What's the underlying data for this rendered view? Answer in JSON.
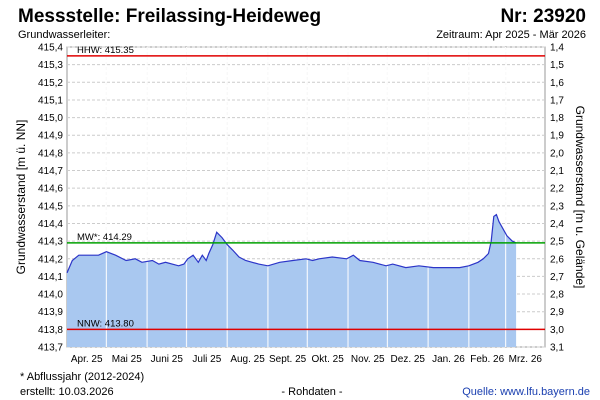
{
  "header": {
    "title": "Messstelle: Freilassing-Heideweg",
    "number": "Nr: 23920",
    "subtitle": "Grundwasserleiter:",
    "period": "Zeitraum: Apr 2025 - Mär 2026"
  },
  "footer": {
    "note": "* Abflussjahr (2012-2024)",
    "created": "erstellt:  10.03.2026",
    "rawdata": "- Rohdaten -",
    "source": "Quelle: www.lfu.bayern.de"
  },
  "colors": {
    "fill": "#a9c8f0",
    "line": "#2c35c8",
    "hhw": "#e00000",
    "mw": "#00a000",
    "nnw": "#e00000",
    "grid": "#cccccc",
    "month_grid": "#dddddd"
  },
  "chart_data": {
    "type": "area",
    "ylabel": "Grundwasserstand [m ü. NN]",
    "y2label": "Grundwasserstand [m u. Gelände]",
    "ylim": [
      413.7,
      415.4
    ],
    "y2lim": [
      3.1,
      1.4
    ],
    "yticks": [
      "413,7",
      "413,8",
      "413,9",
      "414,0",
      "414,1",
      "414,2",
      "414,3",
      "414,4",
      "414,5",
      "414,6",
      "414,7",
      "414,8",
      "414,9",
      "415,0",
      "415,1",
      "415,2",
      "415,3",
      "415,4"
    ],
    "y2ticks": [
      "3,1",
      "3,0",
      "2,9",
      "2,8",
      "2,7",
      "2,6",
      "2,5",
      "2,4",
      "2,3",
      "2,2",
      "2,1",
      "2,0",
      "1,9",
      "1,8",
      "1,7",
      "1,6",
      "1,5",
      "1,4"
    ],
    "month_ticks": [
      "Apr. 25",
      "Mai 25",
      "Juni 25",
      "Juli 25",
      "Aug. 25",
      "Sept. 25",
      "Okt. 25",
      "Nov. 25",
      "Dez. 25",
      "Jan. 26",
      "Feb. 26",
      "Mrz. 26"
    ],
    "reference_lines": [
      {
        "label": "HHW: 415.35",
        "value": 415.35,
        "color": "#e00000"
      },
      {
        "label": "MW*: 414.29",
        "value": 414.29,
        "color": "#00a000"
      },
      {
        "label": "NNW: 413.80",
        "value": 413.8,
        "color": "#e00000"
      }
    ],
    "series": [
      {
        "x": [
          "2025-04-01",
          "2025-04-05",
          "2025-04-10",
          "2025-04-20",
          "2025-04-25",
          "2025-05-01",
          "2025-05-08",
          "2025-05-16",
          "2025-05-23",
          "2025-05-28",
          "2025-06-05",
          "2025-06-10",
          "2025-06-15",
          "2025-06-25",
          "2025-06-29",
          "2025-07-02",
          "2025-07-06",
          "2025-07-10",
          "2025-07-13",
          "2025-07-16",
          "2025-07-18",
          "2025-07-21",
          "2025-07-24",
          "2025-07-28",
          "2025-08-01",
          "2025-08-05",
          "2025-08-10",
          "2025-08-15",
          "2025-08-20",
          "2025-08-25",
          "2025-09-01",
          "2025-09-10",
          "2025-09-20",
          "2025-09-30",
          "2025-10-05",
          "2025-10-10",
          "2025-10-20",
          "2025-10-31",
          "2025-11-05",
          "2025-11-10",
          "2025-11-20",
          "2025-11-30",
          "2025-12-05",
          "2025-12-15",
          "2025-12-25",
          "2026-01-05",
          "2026-01-15",
          "2026-01-25",
          "2026-02-01",
          "2026-02-08",
          "2026-02-12",
          "2026-02-16",
          "2026-02-18",
          "2026-02-20",
          "2026-02-22",
          "2026-02-24",
          "2026-02-27",
          "2026-03-02",
          "2026-03-06",
          "2026-03-09"
        ],
        "y": [
          414.12,
          414.19,
          414.22,
          414.22,
          414.22,
          414.24,
          414.22,
          414.19,
          414.2,
          414.18,
          414.19,
          414.17,
          414.18,
          414.16,
          414.17,
          414.2,
          414.22,
          414.18,
          414.22,
          414.19,
          414.23,
          414.28,
          414.35,
          414.32,
          414.28,
          414.25,
          414.21,
          414.19,
          414.18,
          414.17,
          414.16,
          414.18,
          414.19,
          414.2,
          414.19,
          414.2,
          414.21,
          414.2,
          414.22,
          414.19,
          414.18,
          414.16,
          414.17,
          414.15,
          414.16,
          414.15,
          414.15,
          414.15,
          414.16,
          414.18,
          414.2,
          414.23,
          414.3,
          414.44,
          414.45,
          414.41,
          414.37,
          414.33,
          414.3,
          414.29
        ]
      }
    ]
  }
}
